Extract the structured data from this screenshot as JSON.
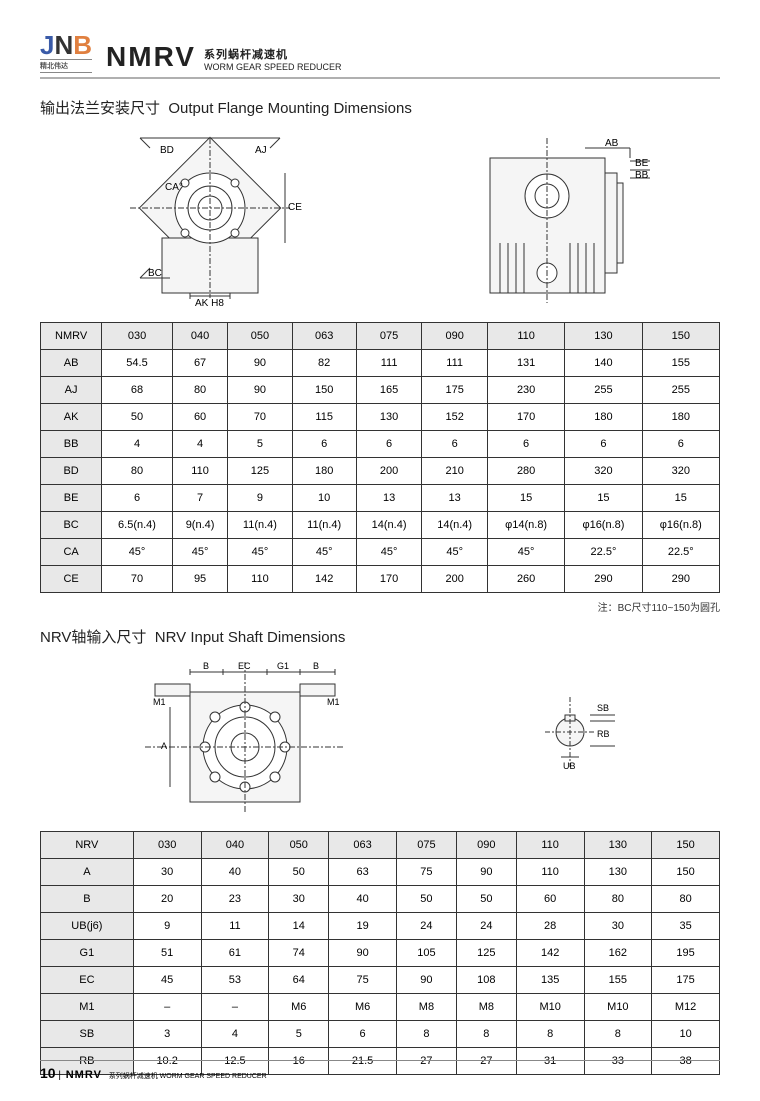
{
  "logo": {
    "j": "J",
    "n": "N",
    "b": "B",
    "sub": "精北伟达"
  },
  "title": {
    "main": "NMRV",
    "cn": "系列蜗杆减速机",
    "en": "WORM GEAR SPEED REDUCER"
  },
  "section1": {
    "cn": "输出法兰安装尺寸",
    "en": "Output Flange Mounting Dimensions"
  },
  "section2": {
    "cn": "NRV轴输入尺寸",
    "en": "NRV Input Shaft Dimensions"
  },
  "note": "注：BC尺寸110~150为圆孔",
  "footer": {
    "page": "10",
    "main": "NMRV",
    "cn": "系列蜗杆减速机",
    "en": "WORM GEAR SPEED REDUCER"
  },
  "diag1_labels": {
    "bd": "BD",
    "aj": "AJ",
    "ca": "CA°",
    "bc": "BC",
    "ce": "CE",
    "ak": "AK H8",
    "ab": "AB",
    "be": "BE",
    "bb": "BB"
  },
  "diag2_labels": {
    "b": "B",
    "ec": "EC",
    "g1": "G1",
    "m1": "M1",
    "a": "A",
    "sb": "SB",
    "rb": "RB",
    "ub": "UB"
  },
  "table1": {
    "header": [
      "NMRV",
      "030",
      "040",
      "050",
      "063",
      "075",
      "090",
      "110",
      "130",
      "150"
    ],
    "rows": [
      [
        "AB",
        "54.5",
        "67",
        "90",
        "82",
        "111",
        "111",
        "131",
        "140",
        "155"
      ],
      [
        "AJ",
        "68",
        "80",
        "90",
        "150",
        "165",
        "175",
        "230",
        "255",
        "255"
      ],
      [
        "AK",
        "50",
        "60",
        "70",
        "115",
        "130",
        "152",
        "170",
        "180",
        "180"
      ],
      [
        "BB",
        "4",
        "4",
        "5",
        "6",
        "6",
        "6",
        "6",
        "6",
        "6"
      ],
      [
        "BD",
        "80",
        "110",
        "125",
        "180",
        "200",
        "210",
        "280",
        "320",
        "320"
      ],
      [
        "BE",
        "6",
        "7",
        "9",
        "10",
        "13",
        "13",
        "15",
        "15",
        "15"
      ],
      [
        "BC",
        "6.5(n.4)",
        "9(n.4)",
        "11(n.4)",
        "11(n.4)",
        "14(n.4)",
        "14(n.4)",
        "φ14(n.8)",
        "φ16(n.8)",
        "φ16(n.8)"
      ],
      [
        "CA",
        "45°",
        "45°",
        "45°",
        "45°",
        "45°",
        "45°",
        "45°",
        "22.5°",
        "22.5°"
      ],
      [
        "CE",
        "70",
        "95",
        "110",
        "142",
        "170",
        "200",
        "260",
        "290",
        "290"
      ]
    ]
  },
  "table2": {
    "header": [
      "NRV",
      "030",
      "040",
      "050",
      "063",
      "075",
      "090",
      "110",
      "130",
      "150"
    ],
    "rows": [
      [
        "A",
        "30",
        "40",
        "50",
        "63",
        "75",
        "90",
        "110",
        "130",
        "150"
      ],
      [
        "B",
        "20",
        "23",
        "30",
        "40",
        "50",
        "50",
        "60",
        "80",
        "80"
      ],
      [
        "UB(j6)",
        "9",
        "11",
        "14",
        "19",
        "24",
        "24",
        "28",
        "30",
        "35"
      ],
      [
        "G1",
        "51",
        "61",
        "74",
        "90",
        "105",
        "125",
        "142",
        "162",
        "195"
      ],
      [
        "EC",
        "45",
        "53",
        "64",
        "75",
        "90",
        "108",
        "135",
        "155",
        "175"
      ],
      [
        "M1",
        "–",
        "–",
        "M6",
        "M6",
        "M8",
        "M8",
        "M10",
        "M10",
        "M12"
      ],
      [
        "SB",
        "3",
        "4",
        "5",
        "6",
        "8",
        "8",
        "8",
        "8",
        "10"
      ],
      [
        "RB",
        "10.2",
        "12.5",
        "16",
        "21.5",
        "27",
        "27",
        "31",
        "33",
        "38"
      ]
    ]
  },
  "colors": {
    "line": "#333",
    "fill": "#f5f5f5",
    "bg": "#fff",
    "header_bg": "#e8e8e8"
  }
}
